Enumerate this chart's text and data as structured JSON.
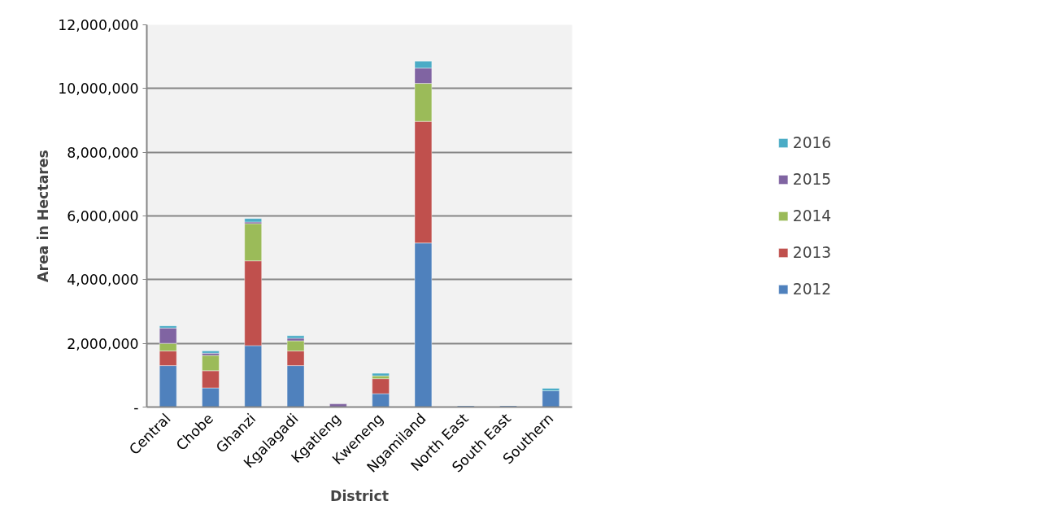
{
  "chart_data": {
    "type": "bar",
    "stacked": true,
    "xlabel": "District",
    "ylabel": "Area in Hectares",
    "categories": [
      "Central",
      "Chobe",
      "Ghanzi",
      "Kgalagadi",
      "Kgatleng",
      "Kweneng",
      "Ngamiland",
      "North East",
      "South East",
      "Southern"
    ],
    "series": [
      {
        "name": "2012",
        "color": "#4f81bd",
        "values": [
          1300000,
          600000,
          1930000,
          1300000,
          null,
          420000,
          5150000,
          40000,
          40000,
          510000
        ]
      },
      {
        "name": "2013",
        "color": "#c0504d",
        "values": [
          460000,
          540000,
          2660000,
          460000,
          null,
          470000,
          3820000,
          null,
          null,
          null
        ]
      },
      {
        "name": "2014",
        "color": "#9bbb59",
        "values": [
          240000,
          480000,
          1170000,
          320000,
          null,
          90000,
          1190000,
          null,
          null,
          null
        ]
      },
      {
        "name": "2015",
        "color": "#8064a2",
        "values": [
          480000,
          70000,
          50000,
          80000,
          100000,
          null,
          480000,
          null,
          null,
          null
        ]
      },
      {
        "name": "2016",
        "color": "#4bacc6",
        "values": [
          70000,
          70000,
          110000,
          80000,
          null,
          80000,
          220000,
          null,
          null,
          80000
        ]
      }
    ],
    "ylim": [
      0,
      12000000
    ],
    "yticks": [
      {
        "value": 0,
        "label": "-"
      },
      {
        "value": 2000000,
        "label": "2,000,000"
      },
      {
        "value": 4000000,
        "label": "4,000,000"
      },
      {
        "value": 6000000,
        "label": "6,000,000"
      },
      {
        "value": 8000000,
        "label": "8,000,000"
      },
      {
        "value": 10000000,
        "label": "10,000,000"
      },
      {
        "value": 12000000,
        "label": "12,000,000"
      }
    ],
    "grid": "y",
    "legend": "right"
  }
}
